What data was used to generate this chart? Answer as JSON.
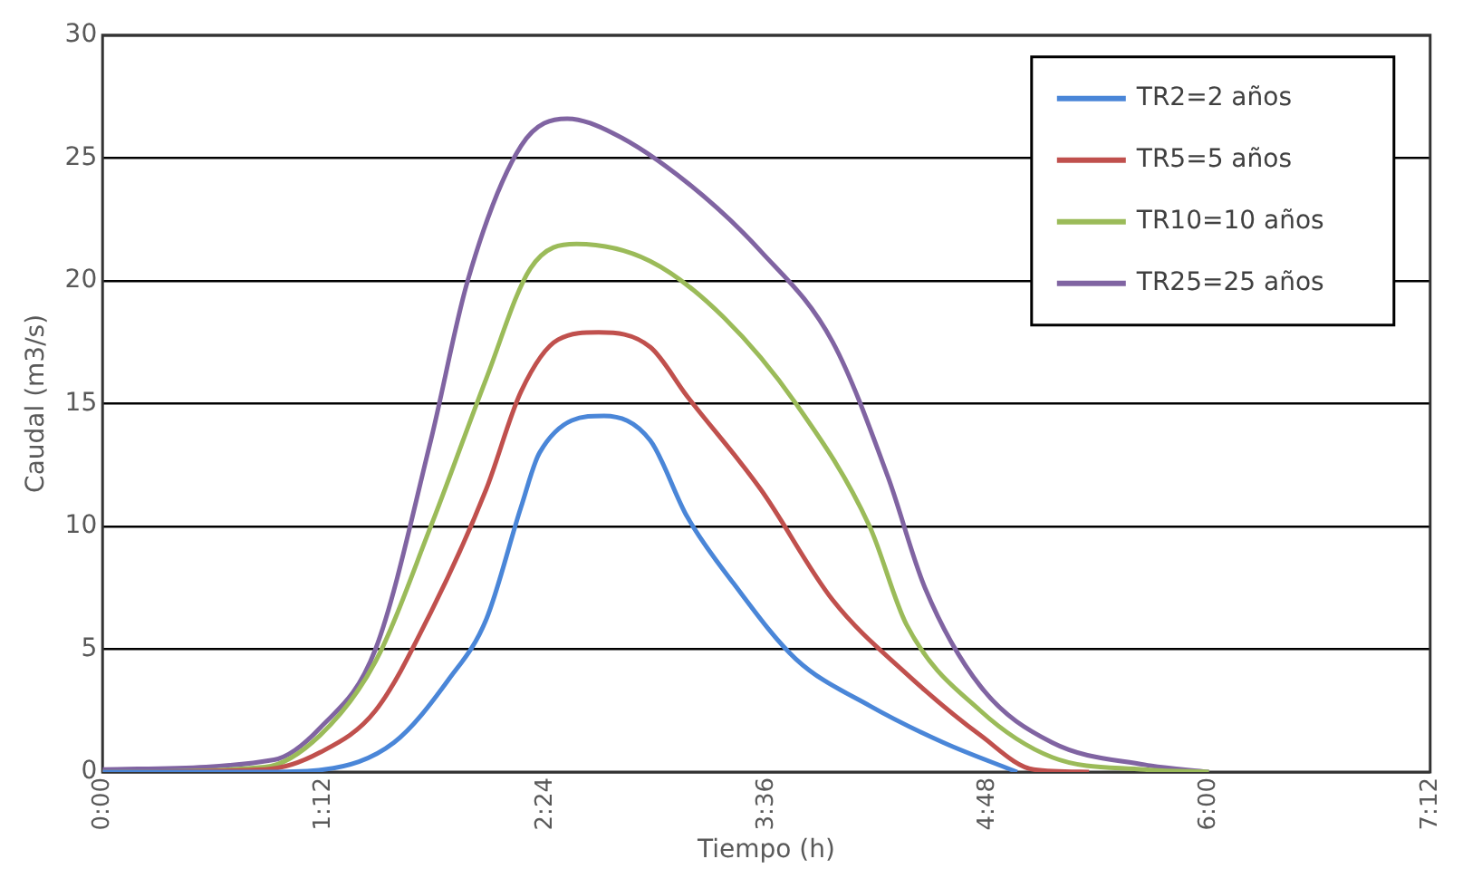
{
  "chart_data": {
    "type": "line",
    "xlabel": "Tiempo (h)",
    "ylabel": "Caudal (m3/s)",
    "xlim": [
      0,
      7.2
    ],
    "xticks": [
      {
        "value": 0,
        "label": "0:00"
      },
      {
        "value": 1.2,
        "label": "1:12"
      },
      {
        "value": 2.4,
        "label": "2:24"
      },
      {
        "value": 3.6,
        "label": "3:36"
      },
      {
        "value": 4.8,
        "label": "4:48"
      },
      {
        "value": 6,
        "label": "6:00"
      },
      {
        "value": 7.2,
        "label": "7:12"
      }
    ],
    "ylim": [
      0,
      30
    ],
    "yticks": [
      0,
      5,
      10,
      15,
      20,
      25,
      30
    ],
    "grid": "y",
    "legend": "top right",
    "marker": "none",
    "line_style": "solid",
    "series": [
      {
        "name": "TR2=2 años",
        "color": "#4a86d8",
        "x": [
          0,
          0.9,
          1.2,
          1.58,
          1.88,
          2.08,
          2.27,
          2.37,
          2.72,
          2.97,
          3.17,
          3.42,
          3.76,
          4.16,
          4.56,
          4.96
        ],
        "values": [
          0,
          0,
          0.1,
          1.2,
          3.8,
          6.2,
          10.8,
          13,
          14.5,
          13.5,
          10.4,
          7.7,
          4.6,
          2.7,
          1.2,
          0
        ]
      },
      {
        "name": "TR5=5 años",
        "color": "#c0504d",
        "x": [
          0,
          0.88,
          1.18,
          1.48,
          1.78,
          2.08,
          2.27,
          2.47,
          2.69,
          2.97,
          3.17,
          3.57,
          3.96,
          4.36,
          4.76,
          5.05,
          5.35
        ],
        "values": [
          0,
          0.1,
          0.8,
          2.5,
          6.5,
          11.5,
          15.5,
          17.6,
          17.9,
          17.3,
          15.3,
          11.5,
          7,
          4,
          1.5,
          0.1,
          0
        ]
      },
      {
        "name": "TR10=10 años",
        "color": "#9bbb59",
        "x": [
          0,
          0.88,
          1.18,
          1.48,
          1.78,
          2.08,
          2.32,
          2.57,
          2.97,
          3.37,
          3.76,
          4.16,
          4.36,
          4.76,
          5.15,
          5.65,
          6.0
        ],
        "values": [
          0,
          0.2,
          1.5,
          4.5,
          10,
          16,
          20.5,
          21.5,
          20.8,
          18.5,
          15,
          10,
          6,
          2.5,
          0.6,
          0.1,
          0
        ]
      },
      {
        "name": "TR25=25 años",
        "color": "#8064a2",
        "x": [
          0,
          0.93,
          1.18,
          1.48,
          1.78,
          1.98,
          2.27,
          2.52,
          2.77,
          3.17,
          3.57,
          3.96,
          4.26,
          4.46,
          4.76,
          5.15,
          5.65,
          6.0
        ],
        "values": [
          0.1,
          0.5,
          1.8,
          5,
          13.5,
          20,
          25.5,
          26.6,
          26,
          24,
          21.2,
          17.5,
          12,
          7.5,
          3.5,
          1.2,
          0.3,
          0
        ]
      }
    ]
  }
}
